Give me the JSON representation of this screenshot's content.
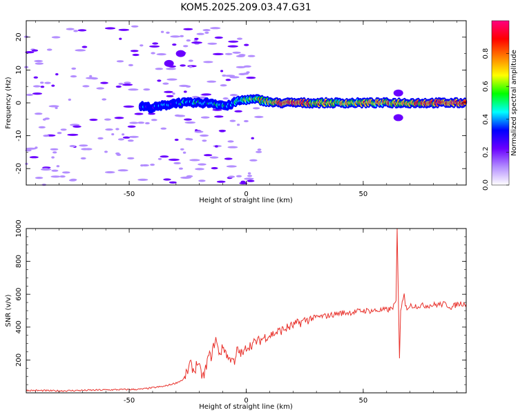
{
  "title": "KOM5.2025.209.03.47.G31",
  "chart_data": [
    {
      "type": "heatmap",
      "xlabel": "Height of straight line (km)",
      "ylabel": "Frequency (Hz)",
      "xlim": [
        -94,
        94
      ],
      "ylim": [
        -25,
        25
      ],
      "x_ticks": [
        -50,
        0,
        50
      ],
      "y_ticks": [
        -20,
        -10,
        0,
        10,
        20
      ],
      "colorbar": {
        "label": "Normalized spectral amplitude",
        "ticks": [
          "0.0",
          "0.2",
          "0.4",
          "0.6",
          "0.8"
        ],
        "range": [
          0,
          1
        ],
        "colors": [
          "#ffffff",
          "#b38dff",
          "#6a00ff",
          "#0000ff",
          "#00ffff",
          "#00ff00",
          "#ffff00",
          "#ff8000",
          "#ff0000",
          "#ff0080"
        ]
      },
      "ridge": [
        {
          "x": -45,
          "f": -1,
          "a": 0.3
        },
        {
          "x": -40,
          "f": -1.5,
          "a": 0.3
        },
        {
          "x": -30,
          "f": 0,
          "a": 0.4
        },
        {
          "x": -22,
          "f": 0,
          "a": 0.5
        },
        {
          "x": -15,
          "f": 0,
          "a": 0.45
        },
        {
          "x": -8,
          "f": -1,
          "a": 0.45
        },
        {
          "x": -4,
          "f": 0.5,
          "a": 0.45
        },
        {
          "x": 0,
          "f": 1,
          "a": 0.55
        },
        {
          "x": 5,
          "f": 1,
          "a": 0.65
        },
        {
          "x": 12,
          "f": 0,
          "a": 0.8
        },
        {
          "x": 20,
          "f": 0,
          "a": 0.9
        },
        {
          "x": 30,
          "f": 0,
          "a": 0.75
        },
        {
          "x": 40,
          "f": 0,
          "a": 0.7
        },
        {
          "x": 50,
          "f": 0,
          "a": 0.72
        },
        {
          "x": 60,
          "f": 0,
          "a": 0.75
        },
        {
          "x": 70,
          "f": 0,
          "a": 0.8
        },
        {
          "x": 80,
          "f": 0,
          "a": 0.85
        },
        {
          "x": 94,
          "f": 0,
          "a": 0.9
        }
      ],
      "features": [
        {
          "x": 65,
          "f": 3,
          "a": 0.25
        },
        {
          "x": 65,
          "f": -4.5,
          "a": 0.2
        },
        {
          "x": -33,
          "f": 12,
          "a": 0.25
        },
        {
          "x": -28,
          "f": 15,
          "a": 0.25
        }
      ]
    },
    {
      "type": "line",
      "xlabel": "Height of straight line (km)",
      "ylabel": "SNR (v/v)",
      "xlim": [
        -94,
        94
      ],
      "ylim": [
        0,
        1000
      ],
      "x_ticks": [
        -50,
        0,
        50
      ],
      "y_ticks": [
        200,
        400,
        600,
        800,
        1000
      ],
      "color": "#e8302a",
      "series": [
        {
          "x": [
            -94,
            -80,
            -60,
            -45,
            -35,
            -30,
            -27,
            -25,
            -24,
            -23,
            -22,
            -21,
            -20,
            -19,
            -18,
            -17,
            -16,
            -15,
            -14,
            -13,
            -12,
            -11,
            -10,
            -9,
            -8,
            -7,
            -6,
            -5,
            -4,
            -3,
            -2,
            -1,
            0,
            2,
            4,
            6,
            8,
            10,
            15,
            20,
            25,
            30,
            35,
            40,
            45,
            50,
            55,
            60,
            62,
            63,
            64,
            64.5,
            65,
            65.5,
            66,
            67,
            67.5,
            68,
            69,
            70,
            72,
            75,
            80,
            85,
            88,
            90,
            92,
            94
          ],
          "y": [
            15,
            12,
            18,
            22,
            40,
            60,
            80,
            130,
            180,
            150,
            130,
            190,
            150,
            110,
            100,
            170,
            230,
            220,
            280,
            330,
            260,
            240,
            280,
            260,
            220,
            200,
            230,
            160,
            260,
            250,
            240,
            240,
            280,
            290,
            310,
            320,
            340,
            350,
            380,
            410,
            440,
            460,
            470,
            485,
            490,
            500,
            500,
            505,
            510,
            530,
            560,
            1000,
            600,
            210,
            500,
            560,
            600,
            520,
            520,
            530,
            530,
            530,
            535,
            540,
            520,
            540,
            545,
            540
          ]
        }
      ]
    }
  ]
}
